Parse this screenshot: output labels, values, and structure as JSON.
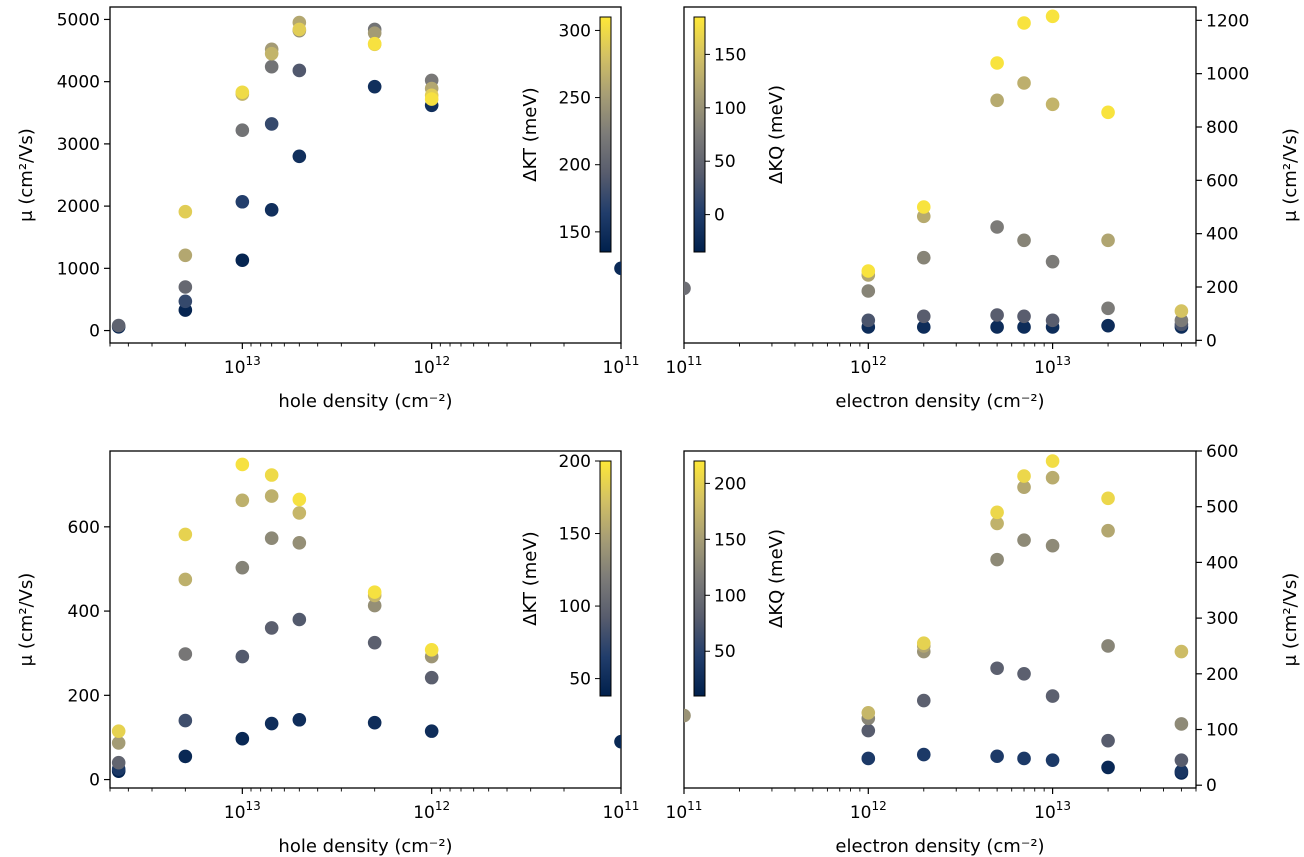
{
  "figure": {
    "colormap": [
      "#00204c",
      "#213d6b",
      "#575c6d",
      "#7c7b78",
      "#a69d75",
      "#d3c164",
      "#fee838"
    ]
  },
  "chart_data": [
    {
      "id": "hole-top",
      "type": "scatter",
      "xlabel": "hole density (cm⁻²)",
      "ylabel": "μ (cm²/Vs)",
      "xscale": "log-reversed",
      "xlim": [
        50000000000000.0,
        100000000000.0
      ],
      "ylim": [
        -200,
        5200
      ],
      "yticks": [
        0,
        1000,
        2000,
        3000,
        4000,
        5000
      ],
      "xticks": [
        {
          "value": 10000000000000.0,
          "label": "10¹³"
        },
        {
          "value": 1000000000000.0,
          "label": "10¹²"
        },
        {
          "value": 100000000000.0,
          "label": "10¹¹"
        }
      ],
      "yaxis_side": "left",
      "colorbar": {
        "label": "ΔKT (meV)",
        "range": [
          135,
          310
        ],
        "ticks": [
          150,
          200,
          250,
          300
        ],
        "placement": "inside-right"
      },
      "points": [
        [
          45000000000000.0,
          60,
          140
        ],
        [
          45000000000000.0,
          80,
          200
        ],
        [
          20000000000000.0,
          330,
          140
        ],
        [
          20000000000000.0,
          470,
          175
        ],
        [
          20000000000000.0,
          700,
          205
        ],
        [
          20000000000000.0,
          1210,
          260
        ],
        [
          20000000000000.0,
          1910,
          290
        ],
        [
          10000000000000.0,
          1130,
          140
        ],
        [
          10000000000000.0,
          2070,
          165
        ],
        [
          10000000000000.0,
          3220,
          215
        ],
        [
          10000000000000.0,
          3800,
          270
        ],
        [
          10000000000000.0,
          3830,
          300
        ],
        [
          7000000000000.0,
          1940,
          150
        ],
        [
          7000000000000.0,
          3320,
          175
        ],
        [
          7000000000000.0,
          4240,
          215
        ],
        [
          7000000000000.0,
          4450,
          270
        ],
        [
          7000000000000.0,
          4520,
          250
        ],
        [
          5000000000000.0,
          2800,
          150
        ],
        [
          5000000000000.0,
          4180,
          190
        ],
        [
          5000000000000.0,
          4820,
          240
        ],
        [
          5000000000000.0,
          4840,
          290
        ],
        [
          5000000000000.0,
          4950,
          260
        ],
        [
          2000000000000.0,
          3920,
          150
        ],
        [
          2000000000000.0,
          4600,
          290
        ],
        [
          2000000000000.0,
          4610,
          305
        ],
        [
          2000000000000.0,
          4780,
          250
        ],
        [
          2000000000000.0,
          4840,
          215
        ],
        [
          1000000000000.0,
          3620,
          150
        ],
        [
          1000000000000.0,
          3720,
          305
        ],
        [
          1000000000000.0,
          3780,
          290
        ],
        [
          1000000000000.0,
          3890,
          260
        ],
        [
          1000000000000.0,
          4020,
          220
        ],
        [
          100000000000.0,
          1000,
          145
        ]
      ]
    },
    {
      "id": "electron-top",
      "type": "scatter",
      "xlabel": "electron density (cm⁻²)",
      "ylabel": "μ (cm²/Vs)",
      "xscale": "log",
      "xlim": [
        100000000000.0,
        60000000000000.0
      ],
      "ylim": [
        -10,
        1250
      ],
      "yticks": [
        0,
        200,
        400,
        600,
        800,
        1000,
        1200
      ],
      "xticks": [
        {
          "value": 100000000000.0,
          "label": "10¹¹"
        },
        {
          "value": 1000000000000.0,
          "label": "10¹²"
        },
        {
          "value": 10000000000000.0,
          "label": "10¹³"
        }
      ],
      "yaxis_side": "right",
      "colorbar": {
        "label": "ΔKQ (meV)",
        "range": [
          -35,
          185
        ],
        "ticks": [
          0,
          50,
          100,
          150
        ],
        "placement": "inside-left"
      },
      "points": [
        [
          100000000000.0,
          195,
          60
        ],
        [
          1000000000000.0,
          50,
          -20
        ],
        [
          1000000000000.0,
          75,
          30
        ],
        [
          1000000000000.0,
          185,
          85
        ],
        [
          1000000000000.0,
          245,
          120
        ],
        [
          1000000000000.0,
          260,
          180
        ],
        [
          2000000000000.0,
          50,
          -20
        ],
        [
          2000000000000.0,
          90,
          40
        ],
        [
          2000000000000.0,
          310,
          85
        ],
        [
          2000000000000.0,
          465,
          125
        ],
        [
          2000000000000.0,
          500,
          180
        ],
        [
          5000000000000.0,
          50,
          -20
        ],
        [
          5000000000000.0,
          95,
          40
        ],
        [
          5000000000000.0,
          425,
          75
        ],
        [
          5000000000000.0,
          900,
          125
        ],
        [
          5000000000000.0,
          1040,
          180
        ],
        [
          7000000000000.0,
          50,
          -20
        ],
        [
          7000000000000.0,
          90,
          40
        ],
        [
          7000000000000.0,
          375,
          85
        ],
        [
          7000000000000.0,
          965,
          130
        ],
        [
          7000000000000.0,
          1190,
          180
        ],
        [
          10000000000000.0,
          50,
          -20
        ],
        [
          10000000000000.0,
          75,
          40
        ],
        [
          10000000000000.0,
          295,
          75
        ],
        [
          10000000000000.0,
          885,
          135
        ],
        [
          10000000000000.0,
          1215,
          180
        ],
        [
          20000000000000.0,
          55,
          -20
        ],
        [
          20000000000000.0,
          120,
          75
        ],
        [
          20000000000000.0,
          375,
          120
        ],
        [
          20000000000000.0,
          855,
          180
        ],
        [
          50000000000000.0,
          50,
          -20
        ],
        [
          50000000000000.0,
          60,
          30
        ],
        [
          50000000000000.0,
          75,
          75
        ],
        [
          50000000000000.0,
          110,
          150
        ]
      ]
    },
    {
      "id": "hole-bottom",
      "type": "scatter",
      "xlabel": "hole density (cm⁻²)",
      "ylabel": "μ (cm²/Vs)",
      "xscale": "log-reversed",
      "xlim": [
        50000000000000.0,
        100000000000.0
      ],
      "ylim": [
        -20,
        780
      ],
      "yticks": [
        0,
        200,
        400,
        600
      ],
      "xticks": [
        {
          "value": 10000000000000.0,
          "label": "10¹³"
        },
        {
          "value": 1000000000000.0,
          "label": "10¹²"
        },
        {
          "value": 100000000000.0,
          "label": "10¹¹"
        }
      ],
      "yaxis_side": "left",
      "colorbar": {
        "label": "ΔKT (meV)",
        "range": [
          38,
          200
        ],
        "ticks": [
          50,
          100,
          150,
          200
        ],
        "placement": "inside-right"
      },
      "points": [
        [
          45000000000000.0,
          20,
          40
        ],
        [
          45000000000000.0,
          25,
          60
        ],
        [
          45000000000000.0,
          40,
          100
        ],
        [
          45000000000000.0,
          87,
          145
        ],
        [
          45000000000000.0,
          115,
          185
        ],
        [
          20000000000000.0,
          55,
          45
        ],
        [
          20000000000000.0,
          140,
          80
        ],
        [
          20000000000000.0,
          298,
          115
        ],
        [
          20000000000000.0,
          475,
          160
        ],
        [
          20000000000000.0,
          582,
          185
        ],
        [
          10000000000000.0,
          97,
          45
        ],
        [
          10000000000000.0,
          292,
          90
        ],
        [
          10000000000000.0,
          503,
          125
        ],
        [
          10000000000000.0,
          663,
          160
        ],
        [
          10000000000000.0,
          748,
          195
        ],
        [
          7000000000000.0,
          133,
          50
        ],
        [
          7000000000000.0,
          360,
          95
        ],
        [
          7000000000000.0,
          573,
          130
        ],
        [
          7000000000000.0,
          673,
          160
        ],
        [
          7000000000000.0,
          723,
          190
        ],
        [
          5000000000000.0,
          142,
          50
        ],
        [
          5000000000000.0,
          380,
          90
        ],
        [
          5000000000000.0,
          562,
          135
        ],
        [
          5000000000000.0,
          633,
          165
        ],
        [
          5000000000000.0,
          665,
          195
        ],
        [
          2000000000000.0,
          135,
          50
        ],
        [
          2000000000000.0,
          325,
          95
        ],
        [
          2000000000000.0,
          413,
          135
        ],
        [
          2000000000000.0,
          437,
          165
        ],
        [
          2000000000000.0,
          445,
          195
        ],
        [
          1000000000000.0,
          115,
          50
        ],
        [
          1000000000000.0,
          242,
          95
        ],
        [
          1000000000000.0,
          292,
          140
        ],
        [
          1000000000000.0,
          308,
          195
        ],
        [
          100000000000.0,
          90,
          45
        ]
      ]
    },
    {
      "id": "electron-bottom",
      "type": "scatter",
      "xlabel": "electron density (cm⁻²)",
      "ylabel": "μ (cm²/Vs)",
      "xscale": "log",
      "xlim": [
        100000000000.0,
        60000000000000.0
      ],
      "ylim": [
        -5,
        600
      ],
      "yticks": [
        0,
        100,
        200,
        300,
        400,
        500,
        600
      ],
      "xticks": [
        {
          "value": 100000000000.0,
          "label": "10¹¹"
        },
        {
          "value": 1000000000000.0,
          "label": "10¹²"
        },
        {
          "value": 10000000000000.0,
          "label": "10¹³"
        }
      ],
      "yaxis_side": "right",
      "colorbar": {
        "label": "ΔKQ (meV)",
        "range": [
          10,
          220
        ],
        "ticks": [
          50,
          100,
          150,
          200
        ],
        "placement": "inside-left"
      },
      "points": [
        [
          100000000000.0,
          125,
          140
        ],
        [
          1000000000000.0,
          48,
          40
        ],
        [
          1000000000000.0,
          98,
          80
        ],
        [
          1000000000000.0,
          120,
          125
        ],
        [
          1000000000000.0,
          130,
          175
        ],
        [
          2000000000000.0,
          55,
          40
        ],
        [
          2000000000000.0,
          152,
          85
        ],
        [
          2000000000000.0,
          240,
          140
        ],
        [
          2000000000000.0,
          250,
          160
        ],
        [
          2000000000000.0,
          255,
          200
        ],
        [
          5000000000000.0,
          52,
          40
        ],
        [
          5000000000000.0,
          210,
          85
        ],
        [
          5000000000000.0,
          405,
          130
        ],
        [
          5000000000000.0,
          470,
          170
        ],
        [
          5000000000000.0,
          490,
          205
        ],
        [
          7000000000000.0,
          48,
          40
        ],
        [
          7000000000000.0,
          200,
          85
        ],
        [
          7000000000000.0,
          440,
          130
        ],
        [
          7000000000000.0,
          535,
          160
        ],
        [
          7000000000000.0,
          555,
          205
        ],
        [
          10000000000000.0,
          45,
          40
        ],
        [
          10000000000000.0,
          160,
          85
        ],
        [
          10000000000000.0,
          430,
          130
        ],
        [
          10000000000000.0,
          552,
          165
        ],
        [
          10000000000000.0,
          582,
          210
        ],
        [
          20000000000000.0,
          32,
          20
        ],
        [
          20000000000000.0,
          80,
          80
        ],
        [
          20000000000000.0,
          250,
          125
        ],
        [
          20000000000000.0,
          457,
          160
        ],
        [
          20000000000000.0,
          515,
          205
        ],
        [
          50000000000000.0,
          22,
          20
        ],
        [
          50000000000000.0,
          25,
          35
        ],
        [
          50000000000000.0,
          45,
          80
        ],
        [
          50000000000000.0,
          110,
          130
        ],
        [
          50000000000000.0,
          240,
          180
        ]
      ]
    }
  ]
}
